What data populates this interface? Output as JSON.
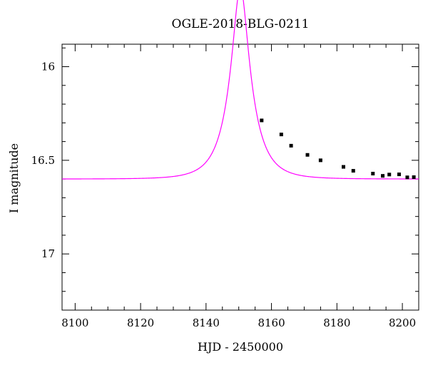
{
  "chart_data": {
    "type": "scatter",
    "title": "OGLE-2018-BLG-0211",
    "xlabel": "HJD - 2450000",
    "ylabel": "I magnitude",
    "xlim": [
      8096,
      8205
    ],
    "ylim": [
      17.3,
      15.88
    ],
    "y_inverted": true,
    "grid": false,
    "x_major_ticks": [
      8100,
      8120,
      8140,
      8160,
      8180,
      8200
    ],
    "y_major_ticks": [
      16,
      16.5,
      17
    ],
    "x_tick_labels": [
      "8100",
      "8120",
      "8140",
      "8160",
      "8180",
      "8200"
    ],
    "y_tick_labels": [
      "16",
      "16.5",
      "17"
    ],
    "colors": {
      "model": "#ff00ff",
      "points": "#000000"
    },
    "model": {
      "name": "",
      "t0": 8150.5,
      "tE": 7.2,
      "u0": 0.3,
      "baseline_mag": 16.6,
      "blend_fraction": 0.64
    },
    "series": [
      {
        "name": "",
        "x": [
          8157.0,
          8163.0,
          8166.0,
          8171.0,
          8175.0,
          8182.0,
          8185.0,
          8191.0,
          8194.0,
          8196.0,
          8199.0,
          8201.5,
          8203.5
        ],
        "y": [
          16.287,
          16.362,
          16.422,
          16.471,
          16.5,
          16.535,
          16.556,
          16.571,
          16.583,
          16.576,
          16.575,
          16.591,
          16.59
        ],
        "err": [
          0.006,
          0.006,
          0.006,
          0.006,
          0.006,
          0.006,
          0.006,
          0.006,
          0.006,
          0.006,
          0.006,
          0.006,
          0.006
        ]
      }
    ]
  }
}
